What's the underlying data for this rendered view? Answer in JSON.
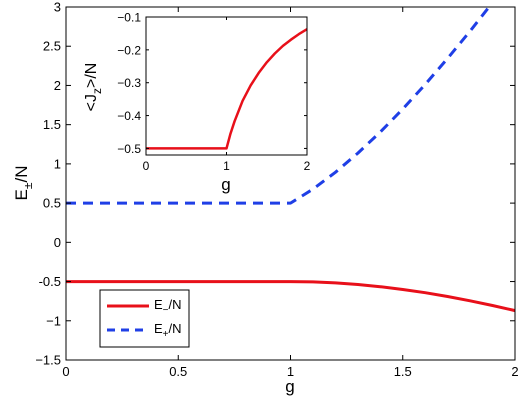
{
  "chart_data": [
    {
      "type": "line",
      "xlabel": "g",
      "ylabel": "E±/N",
      "xlim": [
        0,
        2
      ],
      "ylim": [
        -1.5,
        3
      ],
      "xticks": [
        {
          "value": 0,
          "label": "0"
        },
        {
          "value": 0.5,
          "label": "0.5"
        },
        {
          "value": 1,
          "label": "1"
        },
        {
          "value": 1.5,
          "label": "1.5"
        },
        {
          "value": 2,
          "label": "2"
        }
      ],
      "yticks": [
        {
          "value": -1.5,
          "label": "−1.5"
        },
        {
          "value": -1,
          "label": "−1"
        },
        {
          "value": -0.5,
          "label": "-0.5"
        },
        {
          "value": 0,
          "label": "0"
        },
        {
          "value": 0.5,
          "label": "0.5"
        },
        {
          "value": 1,
          "label": "1"
        },
        {
          "value": 1.5,
          "label": "1.5"
        },
        {
          "value": 2,
          "label": "2"
        },
        {
          "value": 2.5,
          "label": "2.5"
        },
        {
          "value": 3,
          "label": "3"
        }
      ],
      "grid": false,
      "legend_position": "bottom-left",
      "series": [
        {
          "name": "E−/N",
          "color": "#e8101a",
          "style": "solid",
          "x": [
            0,
            0.25,
            0.5,
            0.75,
            1.0,
            1.1,
            1.2,
            1.3,
            1.4,
            1.5,
            1.6,
            1.7,
            1.8,
            1.9,
            2.0
          ],
          "y": [
            -0.5,
            -0.5,
            -0.5,
            -0.5,
            -0.5,
            -0.504,
            -0.517,
            -0.538,
            -0.566,
            -0.601,
            -0.642,
            -0.69,
            -0.745,
            -0.805,
            -0.87
          ]
        },
        {
          "name": "E+/N",
          "color": "#1f3fe6",
          "style": "dashed",
          "x": [
            0,
            0.25,
            0.5,
            0.75,
            1.0,
            1.1,
            1.2,
            1.3,
            1.4,
            1.5,
            1.6,
            1.7,
            1.8,
            1.9,
            2.0
          ],
          "y": [
            0.5,
            0.5,
            0.5,
            0.5,
            0.5,
            0.678,
            0.893,
            1.137,
            1.407,
            1.7,
            2.013,
            2.345,
            2.693,
            3.057,
            3.435
          ]
        }
      ]
    },
    {
      "type": "line",
      "xlabel": "g",
      "ylabel": "<Jz>/N",
      "xlim": [
        0,
        2
      ],
      "ylim": [
        -0.52,
        -0.1
      ],
      "xticks": [
        {
          "value": 0,
          "label": "0"
        },
        {
          "value": 1,
          "label": "1"
        },
        {
          "value": 2,
          "label": "2"
        }
      ],
      "yticks": [
        {
          "value": -0.5,
          "label": "−0.5"
        },
        {
          "value": -0.4,
          "label": "−0.4"
        },
        {
          "value": -0.3,
          "label": "−0.3"
        },
        {
          "value": -0.2,
          "label": "−0.2"
        },
        {
          "value": -0.1,
          "label": "−0.1"
        }
      ],
      "grid": false,
      "series": [
        {
          "color": "#e8101a",
          "style": "solid",
          "x": [
            0,
            0.5,
            1.0,
            1.05,
            1.1,
            1.2,
            1.3,
            1.4,
            1.5,
            1.6,
            1.7,
            1.8,
            1.9,
            2.0
          ],
          "y": [
            -0.5,
            -0.5,
            -0.5,
            -0.455,
            -0.417,
            -0.355,
            -0.308,
            -0.27,
            -0.238,
            -0.211,
            -0.188,
            -0.169,
            -0.152,
            -0.137
          ]
        }
      ]
    }
  ]
}
